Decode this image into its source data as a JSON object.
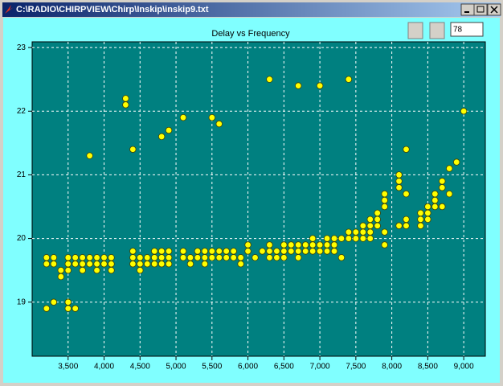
{
  "window": {
    "title": "C:\\RADIO\\CHIRPVIEW\\Chirp\\Inskip\\inskip9.txt"
  },
  "toolbar": {
    "textbox": "78"
  },
  "chart_data": {
    "type": "scatter",
    "title": "Delay vs Frequency",
    "color": "#ffff00",
    "grid": true,
    "xlim": [
      3000,
      9300
    ],
    "ylim": [
      18.15,
      23.09
    ],
    "xticks": [
      {
        "value": 3500,
        "label": "3,500"
      },
      {
        "value": 4000,
        "label": "4,000"
      },
      {
        "value": 4500,
        "label": "4,500"
      },
      {
        "value": 5000,
        "label": "5,000"
      },
      {
        "value": 5500,
        "label": "5,500"
      },
      {
        "value": 6000,
        "label": "6,000"
      },
      {
        "value": 6500,
        "label": "6,500"
      },
      {
        "value": 7000,
        "label": "7,000"
      },
      {
        "value": 7500,
        "label": "7,500"
      },
      {
        "value": 8000,
        "label": "8,000"
      },
      {
        "value": 8500,
        "label": "8,500"
      },
      {
        "value": 9000,
        "label": "9,000"
      }
    ],
    "yticks": [
      19,
      20,
      21,
      22,
      23
    ],
    "x": [
      3200,
      3200,
      3200,
      3300,
      3300,
      3300,
      3400,
      3400,
      3500,
      3500,
      3500,
      3500,
      3500,
      3600,
      3600,
      3600,
      3700,
      3700,
      3700,
      3800,
      3800,
      3800,
      3900,
      3900,
      3900,
      4000,
      4000,
      4100,
      4100,
      4100,
      4300,
      4300,
      4400,
      4400,
      4400,
      4400,
      4500,
      4500,
      4500,
      4600,
      4600,
      4700,
      4700,
      4700,
      4800,
      4800,
      4800,
      4800,
      4900,
      4900,
      4900,
      4900,
      5100,
      5100,
      5100,
      5200,
      5200,
      5300,
      5300,
      5400,
      5400,
      5400,
      5500,
      5500,
      5500,
      5600,
      5600,
      5600,
      5700,
      5700,
      5800,
      5800,
      5900,
      5900,
      6000,
      6000,
      6100,
      6200,
      6300,
      6300,
      6300,
      6300,
      6400,
      6400,
      6500,
      6500,
      6500,
      6600,
      6600,
      6700,
      6700,
      6700,
      6700,
      6800,
      6800,
      6900,
      6900,
      6900,
      7000,
      7000,
      7000,
      7100,
      7100,
      7100,
      7200,
      7200,
      7200,
      7300,
      7300,
      7400,
      7400,
      7400,
      7500,
      7500,
      7600,
      7600,
      7600,
      7700,
      7700,
      7700,
      7700,
      7800,
      7800,
      7800,
      7900,
      7900,
      7900,
      7900,
      7900,
      8100,
      8100,
      8100,
      8100,
      8200,
      8200,
      8200,
      8200,
      8400,
      8400,
      8400,
      8500,
      8500,
      8500,
      8600,
      8600,
      8600,
      8700,
      8700,
      8700,
      8800,
      8800,
      8900,
      9000
    ],
    "y": [
      18.9,
      19.7,
      19.6,
      19.0,
      19.7,
      19.6,
      19.5,
      19.4,
      19.0,
      18.9,
      19.7,
      19.6,
      19.5,
      18.9,
      19.7,
      19.6,
      19.7,
      19.6,
      19.5,
      21.3,
      19.7,
      19.6,
      19.7,
      19.6,
      19.5,
      19.7,
      19.6,
      19.7,
      19.6,
      19.5,
      22.2,
      22.1,
      21.4,
      19.8,
      19.7,
      19.6,
      19.7,
      19.6,
      19.5,
      19.7,
      19.6,
      19.8,
      19.7,
      19.6,
      21.6,
      19.8,
      19.7,
      19.6,
      21.7,
      19.8,
      19.7,
      19.6,
      21.9,
      19.8,
      19.7,
      19.7,
      19.6,
      19.8,
      19.7,
      19.8,
      19.7,
      19.6,
      21.9,
      19.8,
      19.7,
      21.8,
      19.8,
      19.7,
      19.8,
      19.7,
      19.8,
      19.7,
      19.7,
      19.6,
      19.9,
      19.8,
      19.7,
      19.8,
      22.5,
      19.9,
      19.8,
      19.7,
      19.8,
      19.7,
      19.9,
      19.8,
      19.7,
      19.9,
      19.8,
      22.4,
      19.9,
      19.8,
      19.7,
      19.9,
      19.8,
      20.0,
      19.9,
      19.8,
      22.4,
      19.9,
      19.8,
      20.0,
      19.9,
      19.8,
      20.0,
      19.9,
      19.8,
      20.0,
      19.7,
      22.5,
      20.1,
      20.0,
      20.1,
      20.0,
      20.2,
      20.1,
      20.0,
      20.3,
      20.2,
      20.1,
      20.0,
      20.4,
      20.3,
      20.2,
      20.7,
      20.6,
      20.5,
      20.1,
      19.9,
      21.0,
      20.9,
      20.8,
      20.2,
      21.4,
      20.7,
      20.3,
      20.2,
      20.4,
      20.3,
      20.2,
      20.5,
      20.4,
      20.3,
      20.7,
      20.6,
      20.5,
      20.9,
      20.8,
      20.5,
      21.1,
      20.7,
      21.2,
      22.0
    ]
  }
}
